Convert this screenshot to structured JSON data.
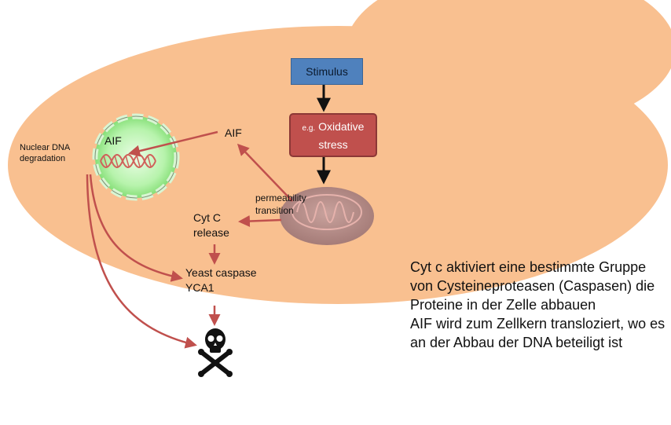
{
  "colors": {
    "cell": "#f9c090",
    "nucleus": "#a6f09a",
    "stimulus_box": "#4f81bd",
    "stress_box": "#c0504d",
    "arrow_red": "#c0504d",
    "arrow_black": "#111111",
    "mitochondrion": "#b78e8a"
  },
  "nucleus": {
    "label": "AIF"
  },
  "labels": {
    "nuclear_dna": [
      "Nuclear DNA",
      "degradation"
    ],
    "aif_cytoplasm": "AIF",
    "cytc": [
      "Cyt C",
      "release"
    ],
    "permeability": [
      "permeability",
      "transition"
    ],
    "caspase": [
      "Yeast caspase",
      "YCA1"
    ]
  },
  "stimulus": {
    "label": "Stimulus"
  },
  "stress": {
    "prefix": "e.g.",
    "label_line1": "Oxidative",
    "label_line2": "stress"
  },
  "icons": {
    "death": "skull-crossbones-icon"
  },
  "side_text": {
    "paragraphs": [
      "Cyt c aktiviert eine bestimmte Gruppe von Cysteineproteasen (Caspasen) die Proteine in der Zelle abbauen",
      "AIF wird zum Zellkern transloziert, wo es an der Abbau der DNA beteiligt ist"
    ]
  }
}
